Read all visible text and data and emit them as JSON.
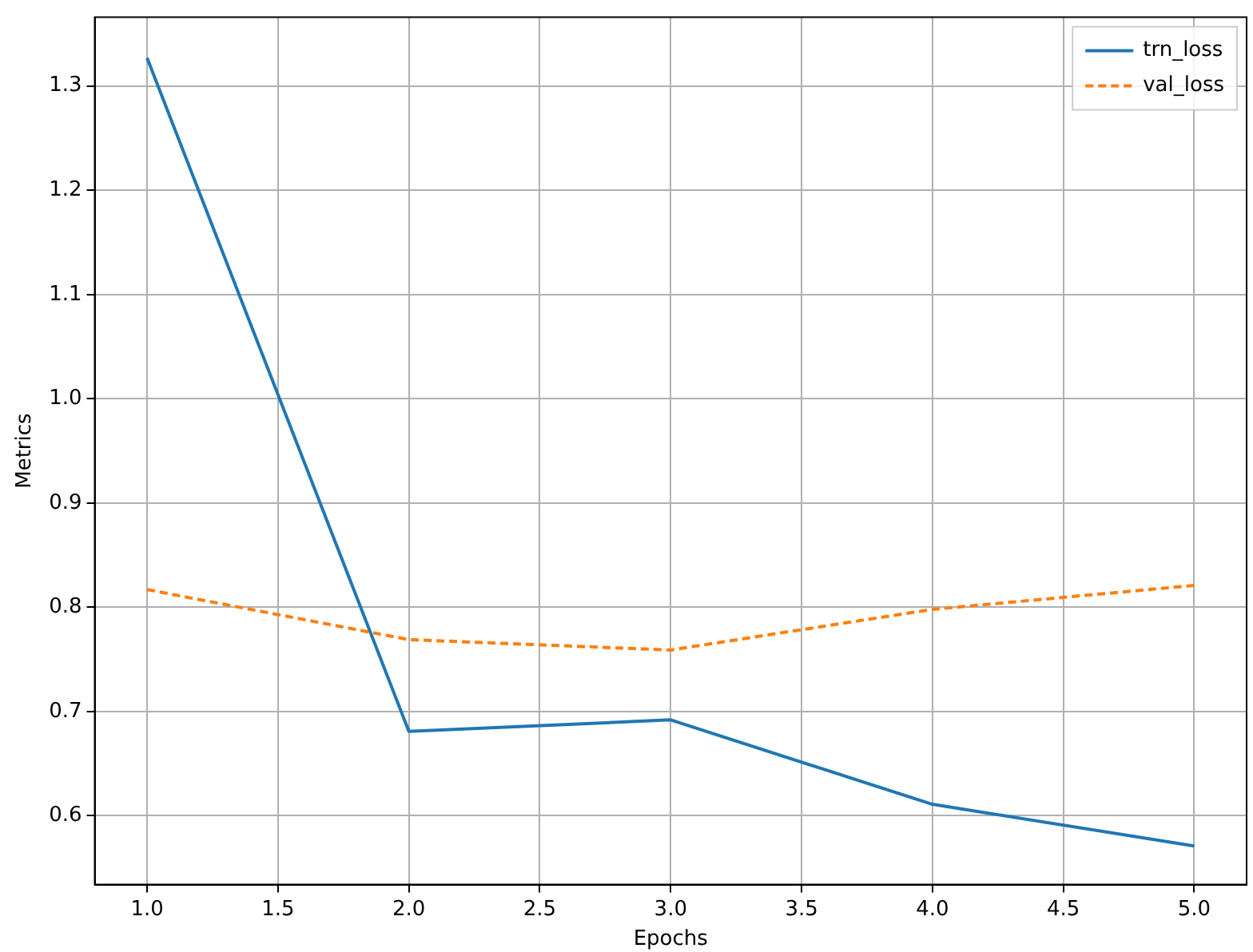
{
  "chart_data": {
    "type": "line",
    "xlabel": "Epochs",
    "ylabel": "Metrics",
    "x": [
      1,
      2,
      3,
      4,
      5
    ],
    "series": [
      {
        "name": "trn_loss",
        "color": "#1f77b4",
        "line_style": "solid",
        "values": [
          1.327,
          0.681,
          0.692,
          0.611,
          0.571
        ]
      },
      {
        "name": "val_loss",
        "color": "#ff7f0e",
        "line_style": "dashed",
        "values": [
          0.817,
          0.769,
          0.759,
          0.798,
          0.821
        ]
      }
    ],
    "xlim": [
      0.8,
      5.2
    ],
    "xticks": [
      {
        "value": 1,
        "label": "1.0"
      },
      1.5,
      {
        "value": 2,
        "label": "2.0"
      },
      2.5,
      {
        "value": 3,
        "label": "3.0"
      },
      3.5,
      {
        "value": 4,
        "label": "4.0"
      },
      4.5,
      {
        "value": 5,
        "label": "5.0"
      }
    ],
    "ylim": [
      0.534,
      1.366
    ],
    "yticks": [
      0.6,
      0.7,
      0.8,
      0.9,
      {
        "value": 1,
        "label": "1.0"
      },
      1.1,
      1.2,
      1.3
    ],
    "grid": true,
    "legend": "top right",
    "marker": "none"
  }
}
